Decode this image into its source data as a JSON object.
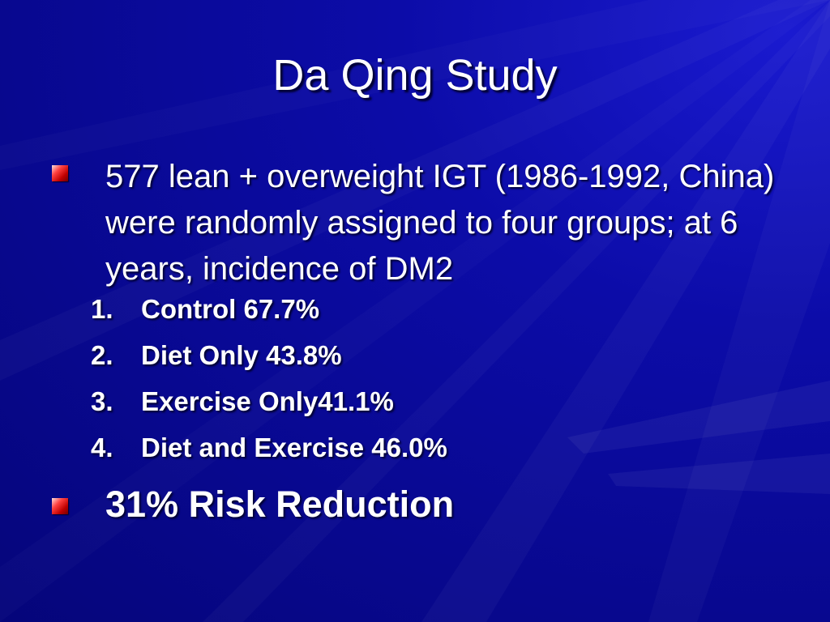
{
  "slide": {
    "title": "Da Qing Study",
    "bullets": [
      {
        "text": "577 lean + overweight IGT (1986-1992, China) were randomly assigned to four groups; at 6 years, incidence of DM2"
      },
      {
        "text": "31% Risk Reduction"
      }
    ],
    "sub_items": [
      {
        "number": "1.",
        "text": "Control 67.7%"
      },
      {
        "number": "2.",
        "text": "Diet Only 43.8%"
      },
      {
        "number": "3.",
        "text": "Exercise Only41.1%"
      },
      {
        "number": "4.",
        "text": "Diet and Exercise 46.0%"
      }
    ]
  },
  "colors": {
    "background_dark": "#05057a",
    "background_light": "#1a1ad0",
    "text": "#ffffff",
    "bullet": "#e02020"
  }
}
